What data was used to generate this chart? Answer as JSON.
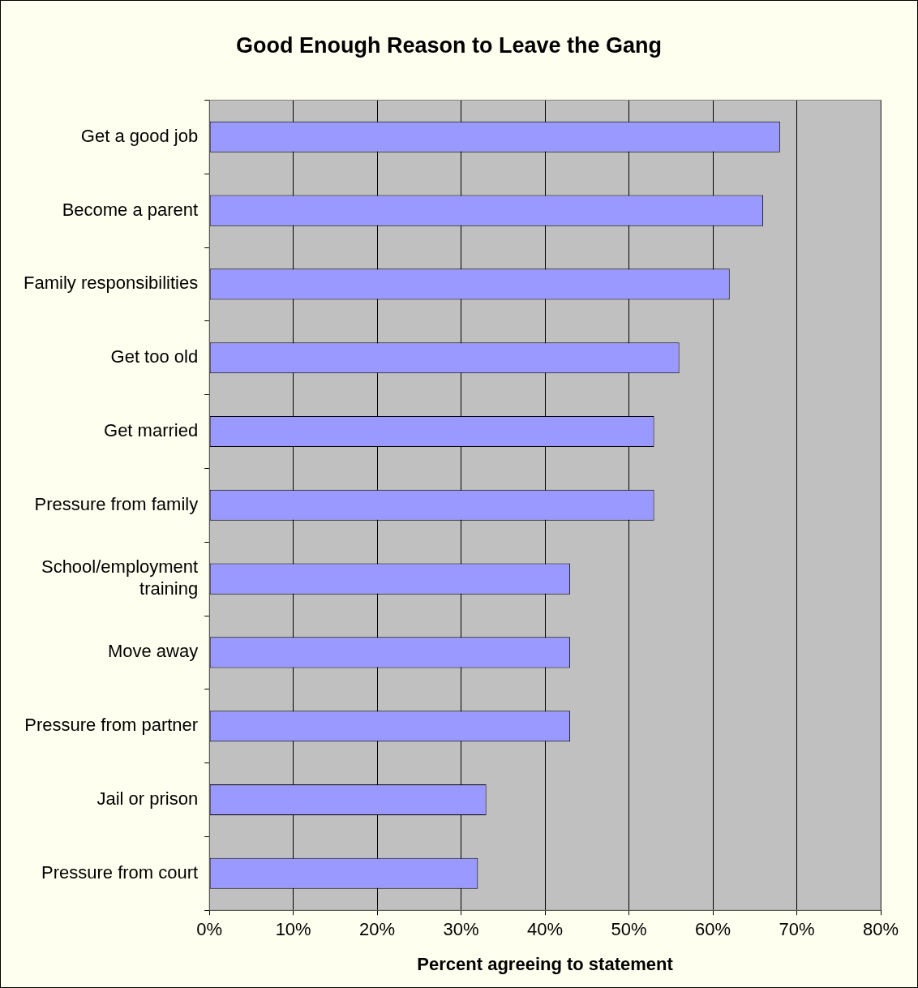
{
  "chart_data": {
    "type": "bar",
    "orientation": "horizontal",
    "title": "Good Enough Reason to Leave the Gang",
    "xlabel": "Percent agreeing to statement",
    "categories": [
      "Get a good job",
      "Become a parent",
      "Family responsibilities",
      "Get too old",
      "Get married",
      "Pressure from family",
      "School/employment training",
      "Move away",
      "Pressure from partner",
      "Jail or prison",
      "Pressure from court"
    ],
    "values": [
      68,
      66,
      62,
      56,
      53,
      53,
      43,
      43,
      43,
      33,
      32
    ],
    "color": "#9999ff",
    "xlim": [
      0,
      80
    ],
    "xticks": [
      {
        "value": 0,
        "label": "0%"
      },
      {
        "value": 10,
        "label": "10%"
      },
      {
        "value": 20,
        "label": "20%"
      },
      {
        "value": 30,
        "label": "30%"
      },
      {
        "value": 40,
        "label": "40%"
      },
      {
        "value": 50,
        "label": "50%"
      },
      {
        "value": 60,
        "label": "60%"
      },
      {
        "value": 70,
        "label": "70%"
      },
      {
        "value": 80,
        "label": "80%"
      }
    ],
    "grid": "x",
    "legend": false
  }
}
